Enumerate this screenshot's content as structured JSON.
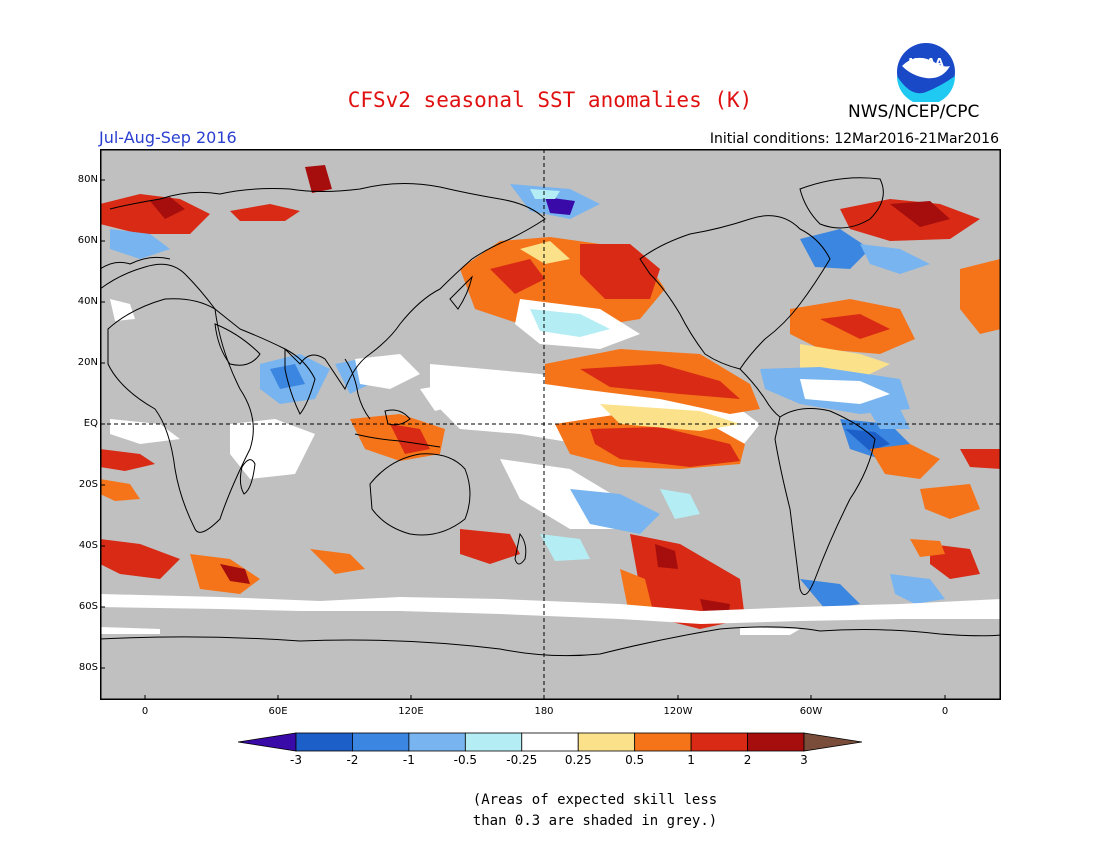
{
  "title": "CFSv2 seasonal SST anomalies (K)",
  "period": "Jul-Aug-Sep 2016",
  "initial_conditions": "Initial conditions: 12Mar2016-21Mar2016",
  "agency": "NWS/NCEP/CPC",
  "logo_text": "NOAA",
  "lat_labels": [
    "80N",
    "60N",
    "40N",
    "20N",
    "EQ",
    "20S",
    "40S",
    "60S",
    "80S"
  ],
  "lon_labels": [
    "0",
    "60E",
    "120E",
    "180",
    "120W",
    "60W",
    "0"
  ],
  "colorbar": {
    "labels": [
      "-3",
      "-2",
      "-1",
      "-0.5",
      "-0.25",
      "0.25",
      "0.5",
      "1",
      "2",
      "3"
    ],
    "colors": [
      "#3a0aa8",
      "#1d5fc9",
      "#3a86e0",
      "#78b4ef",
      "#b4eef4",
      "#ffffff",
      "#fbe18a",
      "#f67419",
      "#d82a14",
      "#a60d0d",
      "#7a4d3a"
    ]
  },
  "note_line1": "(Areas of expected skill less",
  "note_line2": "than 0.3 are shaded in grey.)",
  "colors": {
    "skill_mask_grey": "#c0c0c0",
    "title": "#e01010",
    "period": "#2a3fd0"
  }
}
